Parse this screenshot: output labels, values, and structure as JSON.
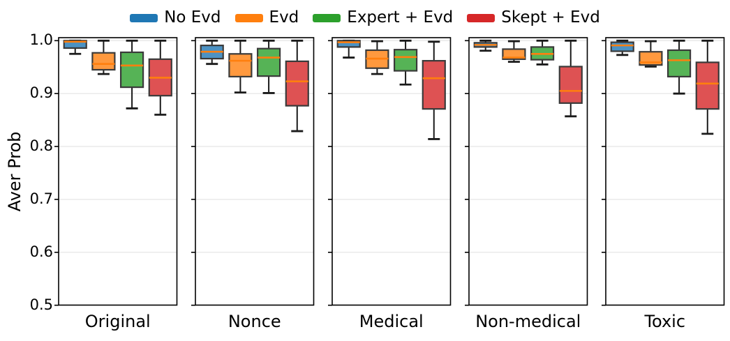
{
  "chart_data": {
    "type": "boxplot",
    "title": "",
    "xlabel": "",
    "ylabel": "Aver Prob",
    "ylim": [
      0.5,
      1.005
    ],
    "grid": true,
    "legend_position": "top-center",
    "categories": [
      "Original",
      "Nonce",
      "Medical",
      "Non-medical",
      "Toxic"
    ],
    "yticks": [
      {
        "label": "1.0",
        "value": 1.0
      },
      {
        "label": "0.9",
        "value": 0.9
      },
      {
        "label": "0.8",
        "value": 0.8
      },
      {
        "label": "0.7",
        "value": 0.7
      },
      {
        "label": "0.6",
        "value": 0.6
      },
      {
        "label": "0.5",
        "value": 0.5
      }
    ],
    "median_color": "#ff7f0e",
    "edge_color": "#3a3a3a",
    "whisker_color": "#1a1a1a",
    "grid_color": "#e8e8e8",
    "spine_color": "#000000",
    "series": [
      {
        "name": "No Evd",
        "color": "#1f77b4",
        "fill": "#4c92c3",
        "boxes": [
          {
            "whislo": 0.975,
            "q1": 0.986,
            "med": 0.998,
            "q3": 1.0,
            "whishi": 1.0
          },
          {
            "whislo": 0.956,
            "q1": 0.966,
            "med": 0.979,
            "q3": 0.991,
            "whishi": 1.0
          },
          {
            "whislo": 0.968,
            "q1": 0.988,
            "med": 0.997,
            "q3": 1.0,
            "whishi": 1.0
          },
          {
            "whislo": 0.981,
            "q1": 0.988,
            "med": 0.992,
            "q3": 0.996,
            "whishi": 1.0
          },
          {
            "whislo": 0.973,
            "q1": 0.98,
            "med": 0.991,
            "q3": 0.997,
            "whishi": 1.0
          }
        ]
      },
      {
        "name": "Evd",
        "color": "#ff7f0e",
        "fill": "#ff993e",
        "boxes": [
          {
            "whislo": 0.937,
            "q1": 0.945,
            "med": 0.956,
            "q3": 0.977,
            "whishi": 1.0
          },
          {
            "whislo": 0.902,
            "q1": 0.932,
            "med": 0.962,
            "q3": 0.975,
            "whishi": 1.0
          },
          {
            "whislo": 0.937,
            "q1": 0.948,
            "med": 0.966,
            "q3": 0.982,
            "whishi": 0.999
          },
          {
            "whislo": 0.96,
            "q1": 0.965,
            "med": 0.968,
            "q3": 0.984,
            "whishi": 0.999
          },
          {
            "whislo": 0.951,
            "q1": 0.954,
            "med": 0.959,
            "q3": 0.979,
            "whishi": 0.999
          }
        ]
      },
      {
        "name": "Expert + Evd",
        "color": "#2ca02c",
        "fill": "#56b356",
        "boxes": [
          {
            "whislo": 0.872,
            "q1": 0.912,
            "med": 0.953,
            "q3": 0.978,
            "whishi": 1.0
          },
          {
            "whislo": 0.901,
            "q1": 0.933,
            "med": 0.968,
            "q3": 0.985,
            "whishi": 1.0
          },
          {
            "whislo": 0.917,
            "q1": 0.943,
            "med": 0.969,
            "q3": 0.983,
            "whishi": 1.0
          },
          {
            "whislo": 0.955,
            "q1": 0.964,
            "med": 0.975,
            "q3": 0.988,
            "whishi": 1.0
          },
          {
            "whislo": 0.9,
            "q1": 0.932,
            "med": 0.963,
            "q3": 0.982,
            "whishi": 1.0
          }
        ]
      },
      {
        "name": "Skept + Evd",
        "color": "#d62728",
        "fill": "#de5253",
        "boxes": [
          {
            "whislo": 0.86,
            "q1": 0.896,
            "med": 0.93,
            "q3": 0.965,
            "whishi": 1.0
          },
          {
            "whislo": 0.829,
            "q1": 0.877,
            "med": 0.923,
            "q3": 0.961,
            "whishi": 1.0
          },
          {
            "whislo": 0.814,
            "q1": 0.871,
            "med": 0.929,
            "q3": 0.962,
            "whishi": 0.998
          },
          {
            "whislo": 0.857,
            "q1": 0.882,
            "med": 0.905,
            "q3": 0.951,
            "whishi": 1.0
          },
          {
            "whislo": 0.824,
            "q1": 0.871,
            "med": 0.919,
            "q3": 0.959,
            "whishi": 1.0
          }
        ]
      }
    ]
  }
}
